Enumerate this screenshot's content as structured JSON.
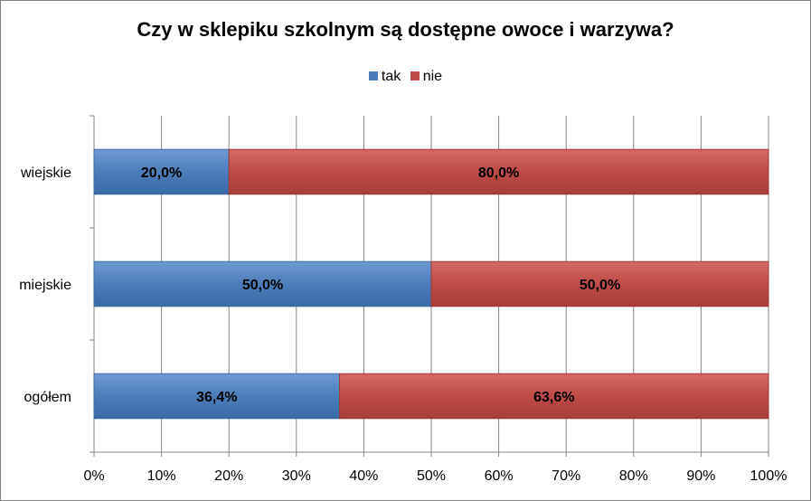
{
  "chart_data": {
    "type": "bar",
    "orientation": "horizontal",
    "stacked": "percent",
    "title": "Czy w sklepiku szkolnym są dostępne owoce i warzywa?",
    "categories": [
      "ogółem",
      "miejskie",
      "wiejskie"
    ],
    "series": [
      {
        "name": "tak",
        "values": [
          36.4,
          50.0,
          20.0
        ],
        "labels": [
          "36,4%",
          "50,0%",
          "20,0%"
        ],
        "color": "#4a7ebb"
      },
      {
        "name": "nie",
        "values": [
          63.6,
          50.0,
          80.0
        ],
        "labels": [
          "63,6%",
          "50,0%",
          "80,0%"
        ],
        "color": "#be4b48"
      }
    ],
    "xlim": [
      0,
      100
    ],
    "x_ticks": [
      "0%",
      "10%",
      "20%",
      "30%",
      "40%",
      "50%",
      "60%",
      "70%",
      "80%",
      "90%",
      "100%"
    ],
    "grid": true,
    "legend_position": "top"
  }
}
